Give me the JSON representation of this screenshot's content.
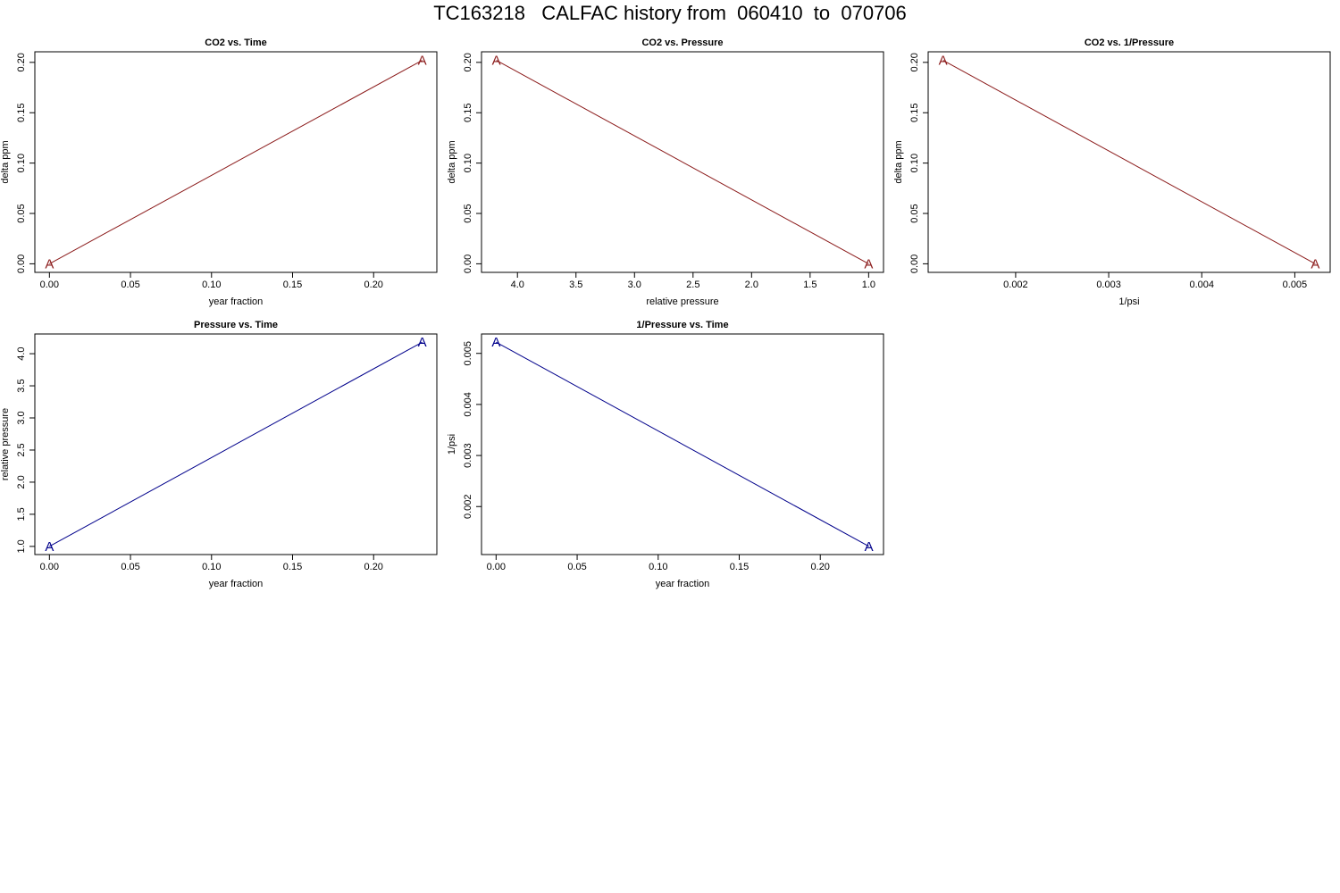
{
  "title": "TC163218   CALFAC history from  060410  to  070706",
  "colors": {
    "co2": "#8b1a1a",
    "pressure": "#00008b",
    "axis": "#000000"
  },
  "chart_data": [
    {
      "type": "line",
      "title": "CO2 vs. Time",
      "xlabel": "year fraction",
      "ylabel": "delta ppm",
      "x": [
        0.0,
        0.23
      ],
      "y": [
        0.0,
        0.202
      ],
      "point_labels": [
        "A",
        "A"
      ],
      "xlim": [
        -0.009,
        0.239
      ],
      "ylim": [
        -0.0085,
        0.2105
      ],
      "xticks": [
        0.0,
        0.05,
        0.1,
        0.15,
        0.2
      ],
      "xtick_labels": [
        "0.00",
        "0.05",
        "0.10",
        "0.15",
        "0.20"
      ],
      "yticks": [
        0.0,
        0.05,
        0.1,
        0.15,
        0.2
      ],
      "ytick_labels": [
        "0.00",
        "0.05",
        "0.10",
        "0.15",
        "0.20"
      ],
      "color": "#8b1a1a",
      "grid": false
    },
    {
      "type": "line",
      "title": "CO2 vs. Pressure",
      "xlabel": "relative pressure",
      "ylabel": "delta ppm",
      "x": [
        4.18,
        1.0
      ],
      "y": [
        0.202,
        0.0
      ],
      "point_labels": [
        "A",
        "A"
      ],
      "xlim": [
        4.307,
        0.873
      ],
      "ylim": [
        -0.0085,
        0.2105
      ],
      "x_reversed": true,
      "xticks": [
        4.0,
        3.5,
        3.0,
        2.5,
        2.0,
        1.5,
        1.0
      ],
      "xtick_labels": [
        "4.0",
        "3.5",
        "3.0",
        "2.5",
        "2.0",
        "1.5",
        "1.0"
      ],
      "yticks": [
        0.0,
        0.05,
        0.1,
        0.15,
        0.2
      ],
      "ytick_labels": [
        "0.00",
        "0.05",
        "0.10",
        "0.15",
        "0.20"
      ],
      "color": "#8b1a1a",
      "grid": false
    },
    {
      "type": "line",
      "title": "CO2 vs. 1/Pressure",
      "xlabel": "1/psi",
      "ylabel": "delta ppm",
      "x": [
        0.00122,
        0.00522
      ],
      "y": [
        0.202,
        0.0
      ],
      "point_labels": [
        "A",
        "A"
      ],
      "xlim": [
        0.00106,
        0.00538
      ],
      "ylim": [
        -0.0085,
        0.2105
      ],
      "xticks": [
        0.002,
        0.003,
        0.004,
        0.005
      ],
      "xtick_labels": [
        "0.002",
        "0.003",
        "0.004",
        "0.005"
      ],
      "yticks": [
        0.0,
        0.05,
        0.1,
        0.15,
        0.2
      ],
      "ytick_labels": [
        "0.00",
        "0.05",
        "0.10",
        "0.15",
        "0.20"
      ],
      "color": "#8b1a1a",
      "grid": false
    },
    {
      "type": "line",
      "title": "Pressure vs. Time",
      "xlabel": "year fraction",
      "ylabel": "relative pressure",
      "x": [
        0.0,
        0.23
      ],
      "y": [
        1.0,
        4.18
      ],
      "point_labels": [
        "A",
        "A"
      ],
      "xlim": [
        -0.009,
        0.239
      ],
      "ylim": [
        0.873,
        4.307
      ],
      "xticks": [
        0.0,
        0.05,
        0.1,
        0.15,
        0.2
      ],
      "xtick_labels": [
        "0.00",
        "0.05",
        "0.10",
        "0.15",
        "0.20"
      ],
      "yticks": [
        1.0,
        1.5,
        2.0,
        2.5,
        3.0,
        3.5,
        4.0
      ],
      "ytick_labels": [
        "1.0",
        "1.5",
        "2.0",
        "2.5",
        "3.0",
        "3.5",
        "4.0"
      ],
      "color": "#00008b",
      "grid": false
    },
    {
      "type": "line",
      "title": "1/Pressure vs. Time",
      "xlabel": "year fraction",
      "ylabel": "1/psi",
      "x": [
        0.0,
        0.23
      ],
      "y": [
        0.00522,
        0.00122
      ],
      "point_labels": [
        "A",
        "A"
      ],
      "xlim": [
        -0.009,
        0.239
      ],
      "ylim": [
        0.00106,
        0.00538
      ],
      "xticks": [
        0.0,
        0.05,
        0.1,
        0.15,
        0.2
      ],
      "xtick_labels": [
        "0.00",
        "0.05",
        "0.10",
        "0.15",
        "0.20"
      ],
      "yticks": [
        0.002,
        0.003,
        0.004,
        0.005
      ],
      "ytick_labels": [
        "0.002",
        "0.003",
        "0.004",
        "0.005"
      ],
      "color": "#00008b",
      "grid": false
    }
  ]
}
